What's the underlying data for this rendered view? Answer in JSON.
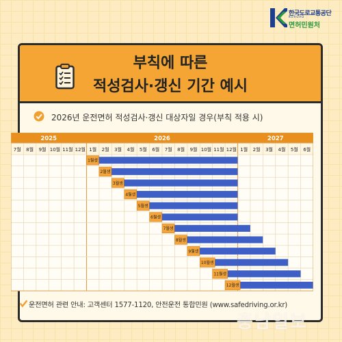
{
  "logo": {
    "org_name": "한국도로교통공단",
    "org_sub": "KOROAD",
    "service_name": "면허민원처"
  },
  "title": {
    "line1": "부칙에 따른",
    "line2": "적성검사·갱신 기간 예시"
  },
  "subtitle": "2026년 운전면허 적성검사·갱신 대상자일 경우(부칙 적용 시)",
  "footer": "운전면허 관련 안내: 고객센터 1577-1120, 안전운전 통합민원 (www.safedriving.or.kr)",
  "watermark": "충남일보",
  "colors": {
    "accent_orange": "#f4a534",
    "bar_blue": "#3e60c6",
    "check_orange": "#f0a02e",
    "label_orange": "#f5a43a"
  },
  "chart_data": {
    "type": "gantt",
    "years": [
      {
        "label": "2025",
        "months": 6
      },
      {
        "label": "2026",
        "months": 12
      },
      {
        "label": "2027",
        "months": 6
      }
    ],
    "months": [
      "7월",
      "8월",
      "9월",
      "10월",
      "11월",
      "12월",
      "1월",
      "2월",
      "3월",
      "4월",
      "5월",
      "6월",
      "7월",
      "8월",
      "9월",
      "10월",
      "11월",
      "12월",
      "1월",
      "2월",
      "3월",
      "4월",
      "5월",
      "6월"
    ],
    "rows": [
      {
        "label": "1월생",
        "start": 6,
        "end": 18
      },
      {
        "label": "2월생",
        "start": 7,
        "end": 18
      },
      {
        "label": "3월생",
        "start": 8,
        "end": 18
      },
      {
        "label": "4월생",
        "start": 9,
        "end": 18
      },
      {
        "label": "5월생",
        "start": 10,
        "end": 18
      },
      {
        "label": "6월생",
        "start": 11,
        "end": 18
      },
      {
        "label": "7월생",
        "start": 12,
        "end": 19
      },
      {
        "label": "8월생",
        "start": 13,
        "end": 20
      },
      {
        "label": "9월생",
        "start": 14,
        "end": 21
      },
      {
        "label": "10월생",
        "start": 15,
        "end": 22
      },
      {
        "label": "11월생",
        "start": 16,
        "end": 23
      },
      {
        "label": "12월생",
        "start": 17,
        "end": 24
      }
    ]
  }
}
